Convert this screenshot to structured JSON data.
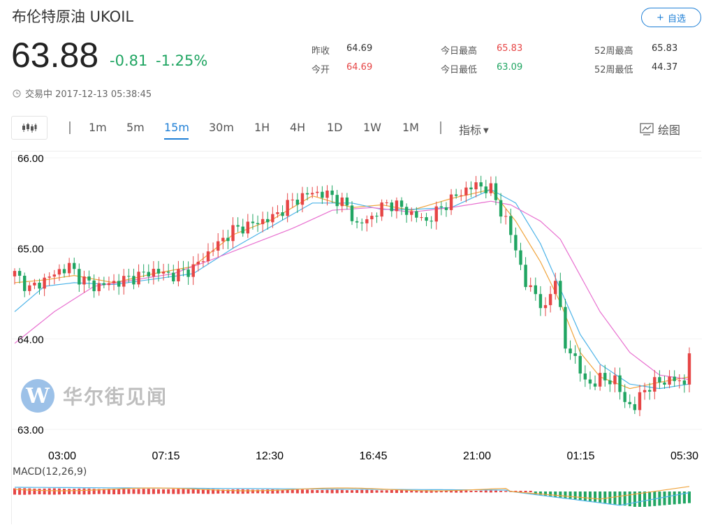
{
  "header": {
    "title": "布伦特原油  UKOIL",
    "add_button_plus": "+",
    "add_button_label": "自选",
    "price": "63.88",
    "change": "-0.81",
    "change_pct": "-1.25%",
    "status": "交易中 2017-12-13 05:38:45"
  },
  "stats": [
    {
      "label": "昨收",
      "value": "64.69",
      "color": "dark"
    },
    {
      "label": "今开",
      "value": "64.69",
      "color": "red"
    },
    {
      "label": "今日最高",
      "value": "65.83",
      "color": "red"
    },
    {
      "label": "今日最低",
      "value": "63.09",
      "color": "green"
    },
    {
      "label": "52周最高",
      "value": "65.83",
      "color": "dark"
    },
    {
      "label": "52周最低",
      "value": "44.37",
      "color": "dark"
    }
  ],
  "toolbar": {
    "timeframes": [
      "1m",
      "5m",
      "15m",
      "30m",
      "1H",
      "4H",
      "1D",
      "1W",
      "1M"
    ],
    "active_timeframe": "15m",
    "indicator_label": "指标",
    "draw_label": "绘图"
  },
  "watermark": {
    "logo_letter": "W",
    "text": "华尔街见闻"
  },
  "macd_label": "MACD(12,26,9)",
  "colors": {
    "up": "#e64545",
    "down": "#20a562",
    "accent": "#1e7fd6",
    "ma_fast": "#f0a43c",
    "ma_mid": "#4cb3e8",
    "ma_slow": "#e870d0"
  },
  "chart_data": {
    "type": "candlestick",
    "y_ticks": [
      "66.00",
      "65.00",
      "64.00",
      "63.00"
    ],
    "ylim": [
      63.0,
      66.0
    ],
    "x_ticks": [
      "03:00",
      "07:15",
      "12:30",
      "16:45",
      "21:00",
      "01:15",
      "05:30"
    ],
    "close_path": [
      [
        0,
        64.72
      ],
      [
        3,
        64.55
      ],
      [
        6,
        64.65
      ],
      [
        9,
        64.75
      ],
      [
        11,
        64.8
      ],
      [
        13,
        64.68
      ],
      [
        16,
        64.58
      ],
      [
        20,
        64.62
      ],
      [
        24,
        64.68
      ],
      [
        28,
        64.75
      ],
      [
        32,
        64.7
      ],
      [
        36,
        64.78
      ],
      [
        40,
        65.0
      ],
      [
        44,
        65.2
      ],
      [
        48,
        65.27
      ],
      [
        52,
        65.34
      ],
      [
        56,
        65.52
      ],
      [
        60,
        65.62
      ],
      [
        64,
        65.58
      ],
      [
        67,
        65.46
      ],
      [
        69,
        65.25
      ],
      [
        72,
        65.35
      ],
      [
        75,
        65.5
      ],
      [
        78,
        65.45
      ],
      [
        80,
        65.38
      ],
      [
        83,
        65.3
      ],
      [
        86,
        65.45
      ],
      [
        90,
        65.62
      ],
      [
        93,
        65.7
      ],
      [
        96,
        65.65
      ],
      [
        99,
        65.3
      ],
      [
        101,
        65.0
      ],
      [
        103,
        64.6
      ],
      [
        105,
        64.5
      ],
      [
        107,
        64.3
      ],
      [
        109,
        64.7
      ],
      [
        111,
        63.9
      ],
      [
        113,
        63.8
      ],
      [
        115,
        63.5
      ],
      [
        118,
        63.55
      ],
      [
        121,
        63.55
      ],
      [
        123,
        63.3
      ],
      [
        125,
        63.25
      ],
      [
        127,
        63.45
      ],
      [
        130,
        63.53
      ],
      [
        133,
        63.55
      ],
      [
        135,
        63.5
      ],
      [
        136,
        63.88
      ]
    ],
    "ma_fast_path": [
      [
        0,
        64.62
      ],
      [
        6,
        64.65
      ],
      [
        12,
        64.7
      ],
      [
        20,
        64.62
      ],
      [
        28,
        64.72
      ],
      [
        36,
        64.8
      ],
      [
        44,
        65.15
      ],
      [
        52,
        65.32
      ],
      [
        60,
        65.58
      ],
      [
        68,
        65.45
      ],
      [
        74,
        65.48
      ],
      [
        80,
        65.42
      ],
      [
        88,
        65.55
      ],
      [
        96,
        65.65
      ],
      [
        101,
        65.3
      ],
      [
        106,
        64.85
      ],
      [
        110,
        64.4
      ],
      [
        114,
        63.85
      ],
      [
        118,
        63.58
      ],
      [
        124,
        63.45
      ],
      [
        130,
        63.52
      ],
      [
        136,
        63.58
      ]
    ],
    "ma_mid_path": [
      [
        0,
        64.3
      ],
      [
        6,
        64.58
      ],
      [
        12,
        64.62
      ],
      [
        20,
        64.6
      ],
      [
        28,
        64.66
      ],
      [
        36,
        64.72
      ],
      [
        44,
        65.0
      ],
      [
        52,
        65.25
      ],
      [
        60,
        65.5
      ],
      [
        68,
        65.5
      ],
      [
        74,
        65.43
      ],
      [
        80,
        65.43
      ],
      [
        88,
        65.45
      ],
      [
        96,
        65.65
      ],
      [
        101,
        65.5
      ],
      [
        106,
        65.05
      ],
      [
        110,
        64.55
      ],
      [
        114,
        64.05
      ],
      [
        118,
        63.72
      ],
      [
        124,
        63.5
      ],
      [
        130,
        63.45
      ],
      [
        136,
        63.5
      ]
    ],
    "ma_slow_path": [
      [
        0,
        63.95
      ],
      [
        8,
        64.3
      ],
      [
        16,
        64.58
      ],
      [
        24,
        64.65
      ],
      [
        32,
        64.72
      ],
      [
        40,
        64.88
      ],
      [
        48,
        65.05
      ],
      [
        56,
        65.22
      ],
      [
        64,
        65.42
      ],
      [
        72,
        65.45
      ],
      [
        80,
        65.4
      ],
      [
        88,
        65.45
      ],
      [
        96,
        65.52
      ],
      [
        100,
        65.48
      ],
      [
        106,
        65.3
      ],
      [
        110,
        65.1
      ],
      [
        114,
        64.7
      ],
      [
        118,
        64.3
      ],
      [
        124,
        63.85
      ],
      [
        130,
        63.6
      ],
      [
        136,
        63.55
      ]
    ],
    "macd_hist": {
      "positive_until": 100,
      "negative_from": 105
    }
  }
}
